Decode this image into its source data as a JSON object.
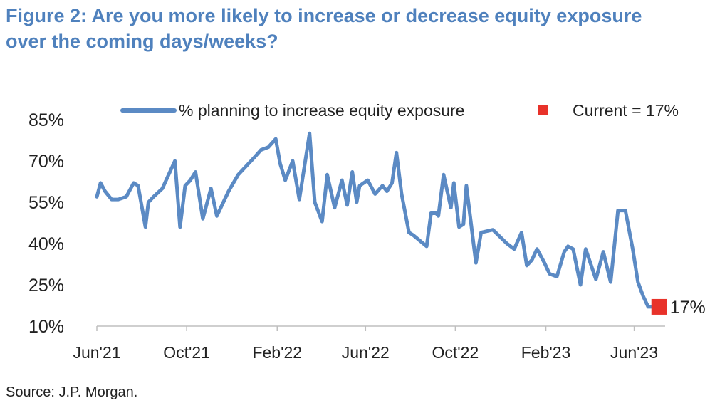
{
  "title_line1": "Figure 2: Are you more likely to increase or decrease equity exposure",
  "title_line2": "over the coming days/weeks?",
  "source": "Source: J.P. Morgan.",
  "colors": {
    "series": "#5b8ac4",
    "marker": "#e8322a",
    "title": "#4f81bd"
  },
  "chart_data": {
    "type": "line",
    "y_ticks": [
      "85%",
      "70%",
      "55%",
      "40%",
      "25%",
      "10%"
    ],
    "y_tick_values": [
      85,
      70,
      55,
      40,
      25,
      10
    ],
    "ylim": [
      10,
      85
    ],
    "x_ticks": [
      "Jun'21",
      "Oct'21",
      "Feb'22",
      "Jun'22",
      "Oct'22",
      "Feb'23",
      "Jun'23"
    ],
    "x_tick_dates": [
      "2021-06-01",
      "2021-10-01",
      "2022-02-01",
      "2022-06-01",
      "2022-10-01",
      "2023-02-01",
      "2023-06-01"
    ],
    "xlim": [
      "2021-06-01",
      "2023-07-13"
    ],
    "legend_position": "top",
    "series": [
      {
        "name": "% planning to increase equity exposure",
        "x": [
          "2021-06-01",
          "2021-06-06",
          "2021-06-12",
          "2021-06-21",
          "2021-06-30",
          "2021-07-11",
          "2021-07-21",
          "2021-07-27",
          "2021-08-06",
          "2021-08-10",
          "2021-08-17",
          "2021-08-29",
          "2021-09-15",
          "2021-09-22",
          "2021-09-29",
          "2021-10-06",
          "2021-10-13",
          "2021-10-23",
          "2021-11-03",
          "2021-11-11",
          "2021-11-27",
          "2021-12-10",
          "2021-12-31",
          "2022-01-10",
          "2022-01-20",
          "2022-01-30",
          "2022-02-05",
          "2022-02-12",
          "2022-02-22",
          "2022-03-03",
          "2022-03-17",
          "2022-03-24",
          "2022-04-03",
          "2022-04-10",
          "2022-04-20",
          "2022-04-30",
          "2022-05-07",
          "2022-05-14",
          "2022-05-20",
          "2022-05-24",
          "2022-06-04",
          "2022-06-14",
          "2022-06-24",
          "2022-06-30",
          "2022-07-07",
          "2022-07-13",
          "2022-07-20",
          "2022-07-30",
          "2022-08-05",
          "2022-08-23",
          "2022-08-29",
          "2022-09-05",
          "2022-09-08",
          "2022-09-15",
          "2022-09-25",
          "2022-09-29",
          "2022-10-06",
          "2022-10-12",
          "2022-10-16",
          "2022-10-29",
          "2022-11-05",
          "2022-11-21",
          "2022-12-10",
          "2022-12-20",
          "2022-12-30",
          "2023-01-06",
          "2023-01-13",
          "2023-01-20",
          "2023-01-30",
          "2023-02-06",
          "2023-02-16",
          "2023-02-26",
          "2023-03-03",
          "2023-03-10",
          "2023-03-20",
          "2023-03-27",
          "2023-04-10",
          "2023-04-20",
          "2023-04-30",
          "2023-05-10",
          "2023-05-20",
          "2023-05-30",
          "2023-06-06",
          "2023-06-13",
          "2023-06-20",
          "2023-06-26",
          "2023-07-06"
        ],
        "values": [
          57,
          62,
          59,
          56,
          56,
          57,
          62,
          61,
          46,
          55,
          57,
          60,
          70,
          46,
          61,
          63,
          66,
          49,
          60,
          50,
          59,
          65,
          71,
          74,
          75,
          78,
          69,
          63,
          70,
          56,
          80,
          55,
          48,
          65,
          53,
          63,
          54,
          66,
          55,
          61,
          63,
          58,
          61,
          59,
          62,
          73,
          58,
          44,
          43,
          39,
          51,
          51,
          50,
          65,
          53,
          62,
          46,
          47,
          61,
          33,
          44,
          45,
          40,
          38,
          44,
          32,
          34,
          38,
          33,
          29,
          28,
          37,
          39,
          38,
          25,
          38,
          27,
          37,
          26,
          52,
          52,
          38,
          26,
          21,
          17,
          17,
          17
        ]
      }
    ],
    "current_label": "Current = 17%",
    "current_value_label": "17%",
    "current": {
      "x": "2023-07-05",
      "value": 17
    }
  }
}
